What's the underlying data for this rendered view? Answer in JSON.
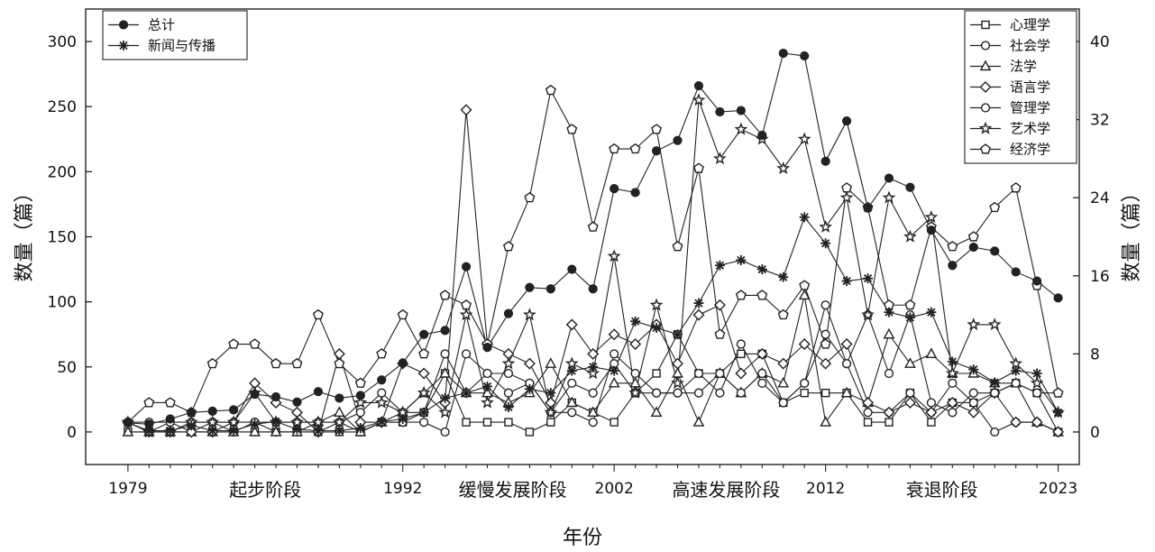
{
  "chart_data": {
    "type": "line",
    "xlabel": "年份",
    "ylabel_left": "数量（篇）",
    "ylabel_right": "数量（篇）",
    "x_ticks": [
      "1979",
      "1992",
      "2002",
      "2012",
      "2023"
    ],
    "stage_labels": [
      "起步阶段",
      "缓慢发展阶段",
      "高速发展阶段",
      "衰退阶段"
    ],
    "xlim": [
      1977,
      2024
    ],
    "ylim_left": [
      -25,
      325
    ],
    "ylim_right": [
      -3.333,
      43.333
    ],
    "y_ticks_left": [
      0,
      50,
      100,
      150,
      200,
      250,
      300
    ],
    "y_ticks_right": [
      0,
      8,
      16,
      24,
      32,
      40
    ],
    "x": [
      1979,
      1980,
      1981,
      1982,
      1983,
      1984,
      1985,
      1986,
      1987,
      1988,
      1989,
      1990,
      1991,
      1992,
      1993,
      1994,
      1995,
      1996,
      1997,
      1998,
      1999,
      2000,
      2001,
      2002,
      2003,
      2004,
      2005,
      2006,
      2007,
      2008,
      2009,
      2010,
      2011,
      2012,
      2013,
      2014,
      2015,
      2016,
      2017,
      2018,
      2019,
      2020,
      2021,
      2022,
      2023
    ],
    "left_series": [
      {
        "name": "总计",
        "marker": "filled-circle",
        "values": [
          7,
          6,
          10,
          15,
          16,
          17,
          29,
          27,
          23,
          31,
          26,
          28,
          40,
          53,
          75,
          78,
          127,
          65,
          91,
          111,
          110,
          125,
          110,
          187,
          184,
          216,
          224,
          266,
          246,
          247,
          228,
          291,
          289,
          208,
          239,
          172,
          195,
          188,
          155,
          128,
          142,
          139,
          123,
          116,
          103
        ]
      },
      {
        "name": "新闻与传播",
        "marker": "asterisk",
        "values": [
          7,
          1,
          1,
          5,
          1,
          1,
          6,
          8,
          2,
          1,
          1,
          3,
          8,
          10,
          15,
          26,
          30,
          35,
          19,
          33,
          30,
          47,
          50,
          47,
          85,
          80,
          75,
          99,
          128,
          132,
          125,
          119,
          165,
          145,
          116,
          118,
          92,
          88,
          92,
          54,
          48,
          38,
          47,
          45,
          15
        ]
      }
    ],
    "right_series": [
      {
        "name": "心理学",
        "marker": "square",
        "values": [
          0,
          0,
          0,
          0,
          0,
          0,
          0,
          0,
          0,
          0,
          0,
          0,
          1,
          1,
          2,
          6,
          1,
          1,
          1,
          0,
          1,
          3,
          2,
          1,
          4,
          6,
          10,
          6,
          6,
          8,
          8,
          3,
          4,
          4,
          4,
          1,
          1,
          4,
          1,
          3,
          3,
          4,
          5,
          4,
          0
        ]
      },
      {
        "name": "社会学",
        "marker": "circle",
        "values": [
          1,
          0,
          1,
          0,
          1,
          0,
          1,
          0,
          0,
          0,
          1,
          0,
          1,
          1,
          1,
          0,
          8,
          6,
          6,
          5,
          2,
          2,
          1,
          8,
          6,
          4,
          4,
          6,
          4,
          9,
          5,
          3,
          5,
          13,
          7,
          2,
          2,
          4,
          2,
          5,
          3,
          0,
          1,
          1,
          0
        ]
      },
      {
        "name": "法学",
        "marker": "triangle",
        "values": [
          0,
          0,
          0,
          0,
          0,
          0,
          0,
          0,
          0,
          1,
          2,
          0,
          1,
          2,
          4,
          6,
          4,
          4,
          3,
          4,
          7,
          3,
          2,
          5,
          5,
          2,
          6,
          1,
          6,
          4,
          6,
          5,
          14,
          1,
          4,
          3,
          10,
          7,
          8,
          6,
          6,
          5,
          5,
          1,
          0
        ]
      },
      {
        "name": "语言学",
        "marker": "diamond",
        "values": [
          1,
          0,
          0,
          0,
          0,
          1,
          5,
          3,
          2,
          0,
          8,
          1,
          1,
          7,
          6,
          3,
          33,
          9,
          8,
          7,
          3,
          11,
          8,
          10,
          9,
          11,
          7,
          12,
          13,
          6,
          8,
          7,
          9,
          7,
          9,
          3,
          2,
          3,
          2,
          3,
          2,
          4,
          1,
          1,
          0
        ]
      },
      {
        "name": "管理学",
        "marker": "circle",
        "values": [
          1,
          1,
          1,
          1,
          1,
          1,
          1,
          1,
          1,
          1,
          1,
          2,
          4,
          2,
          2,
          8,
          4,
          6,
          4,
          5,
          2,
          5,
          4,
          7,
          4,
          4,
          4,
          4,
          6,
          4,
          6,
          3,
          5,
          10,
          7,
          12,
          6,
          12,
          3,
          2,
          4,
          4,
          5,
          4,
          4
        ]
      },
      {
        "name": "艺术学",
        "marker": "star",
        "values": [
          1,
          0,
          0,
          1,
          1,
          1,
          4,
          1,
          1,
          1,
          1,
          3,
          3,
          2,
          4,
          2,
          12,
          3,
          7,
          12,
          2,
          7,
          6,
          18,
          4,
          13,
          5,
          34,
          28,
          31,
          30,
          27,
          30,
          21,
          24,
          12,
          24,
          20,
          22,
          6,
          11,
          11,
          7,
          5,
          2
        ]
      },
      {
        "name": "经济学",
        "marker": "pentagon",
        "values": [
          1,
          3,
          3,
          2,
          7,
          9,
          9,
          7,
          7,
          12,
          7,
          5,
          8,
          12,
          8,
          14,
          13,
          9,
          19,
          24,
          35,
          31,
          21,
          29,
          29,
          31,
          19,
          27,
          10,
          14,
          14,
          12,
          15,
          9,
          25,
          23,
          13,
          13,
          21,
          19,
          20,
          23,
          25,
          15,
          4
        ]
      }
    ],
    "legend_left": {
      "placement": "top-left",
      "entries": [
        "总计",
        "新闻与传播"
      ]
    },
    "legend_right": {
      "placement": "top-right",
      "entries": [
        "心理学",
        "社会学",
        "法学",
        "语言学",
        "管理学",
        "艺术学",
        "经济学"
      ]
    },
    "grid": false,
    "colors": {
      "line": "#222222",
      "background": "#ffffff"
    }
  }
}
